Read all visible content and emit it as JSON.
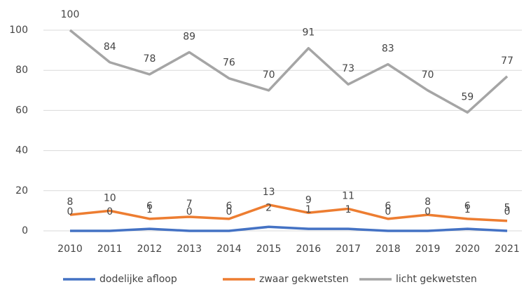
{
  "chart_data": {
    "type": "line",
    "categories": [
      "2010",
      "2011",
      "2012",
      "2013",
      "2014",
      "2015",
      "2016",
      "2017",
      "2018",
      "2019",
      "2020",
      "2021"
    ],
    "series": [
      {
        "name": "dodelijke afloop",
        "color": "#4472c4",
        "values": [
          0,
          0,
          1,
          0,
          0,
          2,
          1,
          1,
          0,
          0,
          1,
          0
        ]
      },
      {
        "name": "zwaar gekwetsten",
        "color": "#ed7d31",
        "values": [
          8,
          10,
          6,
          7,
          6,
          13,
          9,
          11,
          6,
          8,
          6,
          5
        ]
      },
      {
        "name": "licht gekwetsten",
        "color": "#a5a5a5",
        "values": [
          100,
          84,
          78,
          89,
          76,
          70,
          91,
          73,
          83,
          70,
          59,
          77
        ]
      }
    ],
    "ylim": [
      0,
      100
    ],
    "yticks": [
      0,
      20,
      40,
      60,
      80,
      100
    ],
    "grid": true,
    "legend": "bottom"
  }
}
